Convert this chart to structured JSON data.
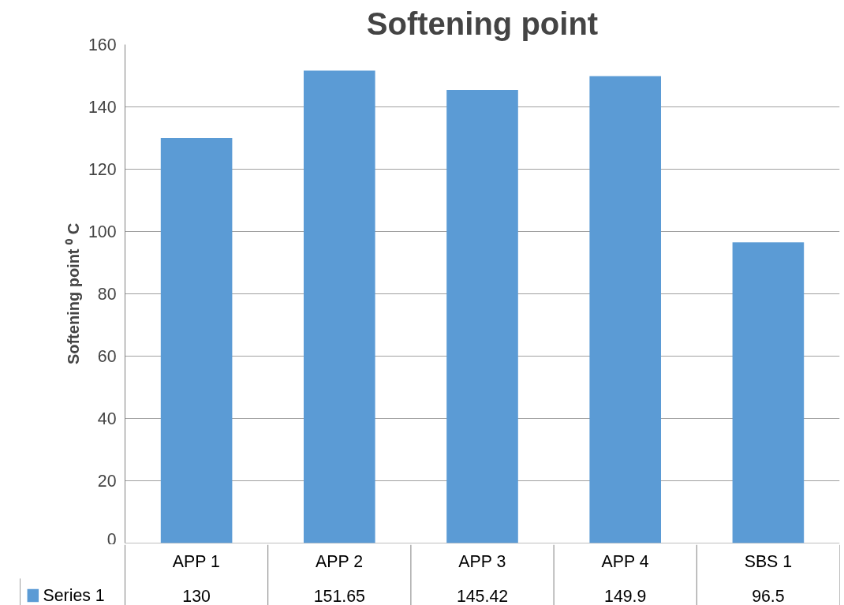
{
  "chart_data": {
    "type": "bar",
    "title": "Softening point",
    "ylabel": "Softening point ⁰ C",
    "categories": [
      "APP 1",
      "APP 2",
      "APP 3",
      "APP 4",
      "SBS 1"
    ],
    "series": [
      {
        "name": "Series 1",
        "color": "#5b9bd5",
        "values": [
          130,
          151.65,
          145.42,
          149.9,
          96.5
        ]
      }
    ],
    "ylim": [
      0,
      160
    ],
    "yticks": [
      0,
      20,
      40,
      60,
      80,
      100,
      120,
      140,
      160
    ],
    "grid": "y",
    "data_labels": true,
    "legend": "bottom"
  }
}
